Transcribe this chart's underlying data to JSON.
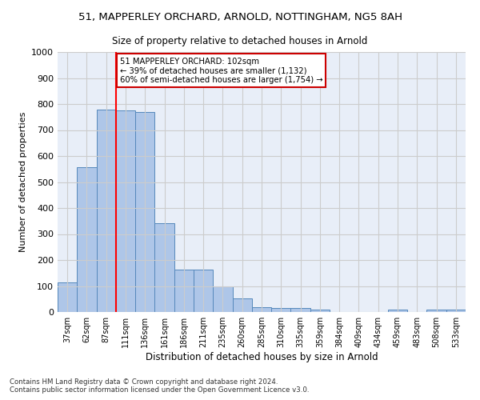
{
  "title": "51, MAPPERLEY ORCHARD, ARNOLD, NOTTINGHAM, NG5 8AH",
  "subtitle": "Size of property relative to detached houses in Arnold",
  "xlabel": "Distribution of detached houses by size in Arnold",
  "ylabel": "Number of detached properties",
  "categories": [
    "37sqm",
    "62sqm",
    "87sqm",
    "111sqm",
    "136sqm",
    "161sqm",
    "186sqm",
    "211sqm",
    "235sqm",
    "260sqm",
    "285sqm",
    "310sqm",
    "335sqm",
    "359sqm",
    "384sqm",
    "409sqm",
    "434sqm",
    "459sqm",
    "483sqm",
    "508sqm",
    "533sqm"
  ],
  "values": [
    113,
    557,
    779,
    775,
    770,
    343,
    163,
    163,
    98,
    52,
    18,
    14,
    14,
    10,
    0,
    0,
    0,
    10,
    0,
    10,
    10
  ],
  "bar_color": "#aec6e8",
  "bar_edge_color": "#5588bb",
  "grid_color": "#cccccc",
  "bg_color": "#e8eef8",
  "red_line_x": 2.5,
  "annotation_text": "51 MAPPERLEY ORCHARD: 102sqm\n← 39% of detached houses are smaller (1,132)\n60% of semi-detached houses are larger (1,754) →",
  "annotation_box_color": "#ffffff",
  "annotation_border_color": "#cc0000",
  "ylim": [
    0,
    1000
  ],
  "yticks": [
    0,
    100,
    200,
    300,
    400,
    500,
    600,
    700,
    800,
    900,
    1000
  ],
  "footer_line1": "Contains HM Land Registry data © Crown copyright and database right 2024.",
  "footer_line2": "Contains public sector information licensed under the Open Government Licence v3.0."
}
